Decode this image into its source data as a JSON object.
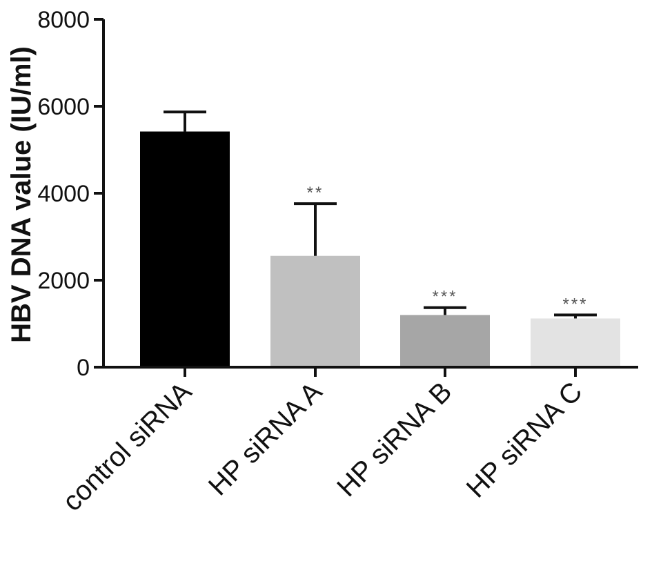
{
  "chart_data": {
    "type": "bar",
    "title": "",
    "ylabel": "HBV DNA value  (IU/ml)",
    "xlabel": "",
    "ylim": [
      0,
      8000
    ],
    "yticks": [
      0,
      2000,
      4000,
      6000,
      8000
    ],
    "grid": false,
    "categories": [
      "control siRNA",
      "HP siRNA A",
      "HP siRNA B",
      "HP siRNA C"
    ],
    "values": [
      5420,
      2560,
      1200,
      1120
    ],
    "error_upper": [
      450,
      1200,
      170,
      80
    ],
    "significance": [
      "",
      "**",
      "***",
      "***"
    ],
    "bar_colors": [
      "#000000",
      "#c0c0c0",
      "#a6a6a6",
      "#e3e3e3"
    ]
  }
}
